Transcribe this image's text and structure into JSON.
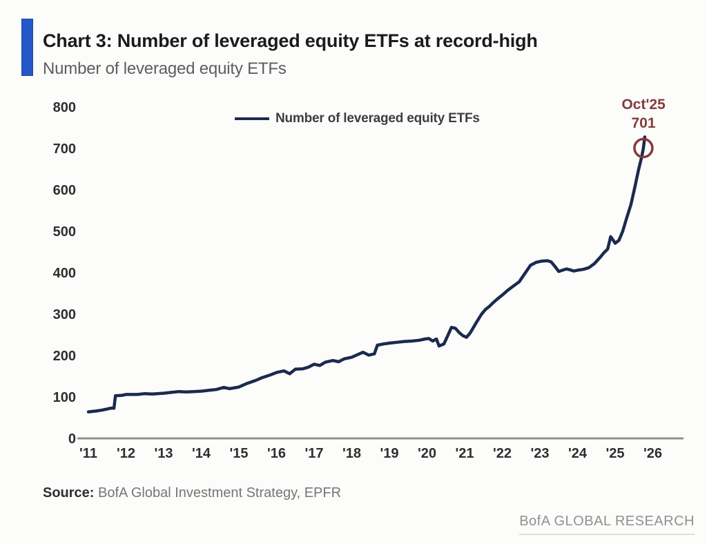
{
  "header": {
    "title": "Chart 3: Number of leveraged equity ETFs at record-high",
    "subtitle": "Number of leveraged equity ETFs"
  },
  "footer": {
    "source_label": "Source:",
    "source_text": " BofA Global Investment Strategy, EPFR",
    "brand": "BofA GLOBAL RESEARCH"
  },
  "colors": {
    "accent_bar": "#2457c9",
    "line": "#1b2a4e",
    "annotation": "#853a3a",
    "axis": "#8f8f8f",
    "tick_label": "#2e2e2e"
  },
  "chart_data": {
    "type": "line",
    "title": "Number of leveraged equity ETFs",
    "xlabel": "",
    "ylabel": "",
    "grid": false,
    "legend_position": "top-center",
    "xlim": [
      2010.75,
      2026.4
    ],
    "ylim": [
      0,
      800
    ],
    "yticks": [
      0,
      100,
      200,
      300,
      400,
      500,
      600,
      700,
      800
    ],
    "xticks": {
      "positions": [
        2011,
        2012,
        2013,
        2014,
        2015,
        2016,
        2017,
        2018,
        2019,
        2020,
        2021,
        2022,
        2023,
        2024,
        2025,
        2026
      ],
      "labels": [
        "'11",
        "'12",
        "'13",
        "'14",
        "'15",
        "'16",
        "'17",
        "'18",
        "'19",
        "'20",
        "'21",
        "'22",
        "'23",
        "'24",
        "'25",
        "'26"
      ]
    },
    "series": [
      {
        "name": "Number of leveraged equity ETFs",
        "color": "#1b2a4e",
        "x": [
          2011.0,
          2011.2,
          2011.35,
          2011.5,
          2011.6,
          2011.68,
          2011.72,
          2011.9,
          2012.0,
          2012.3,
          2012.5,
          2012.7,
          2013.0,
          2013.2,
          2013.4,
          2013.6,
          2013.8,
          2014.0,
          2014.2,
          2014.4,
          2014.6,
          2014.75,
          2015.0,
          2015.2,
          2015.45,
          2015.6,
          2015.8,
          2016.0,
          2016.2,
          2016.35,
          2016.5,
          2016.7,
          2016.85,
          2017.0,
          2017.15,
          2017.3,
          2017.5,
          2017.65,
          2017.8,
          2018.0,
          2018.15,
          2018.3,
          2018.45,
          2018.6,
          2018.68,
          2018.85,
          2019.0,
          2019.2,
          2019.4,
          2019.6,
          2019.8,
          2019.95,
          2020.05,
          2020.15,
          2020.25,
          2020.32,
          2020.45,
          2020.55,
          2020.65,
          2020.75,
          2020.85,
          2020.95,
          2021.05,
          2021.15,
          2021.3,
          2021.45,
          2021.55,
          2021.65,
          2021.75,
          2021.85,
          2022.0,
          2022.15,
          2022.3,
          2022.45,
          2022.6,
          2022.75,
          2022.9,
          2023.05,
          2023.2,
          2023.3,
          2023.4,
          2023.5,
          2023.6,
          2023.7,
          2023.8,
          2023.9,
          2024.0,
          2024.15,
          2024.3,
          2024.45,
          2024.6,
          2024.7,
          2024.8,
          2024.88,
          2024.95,
          2025.0,
          2025.1,
          2025.2,
          2025.3,
          2025.42,
          2025.52,
          2025.62,
          2025.7,
          2025.75
        ],
        "values": [
          64,
          66,
          68,
          71,
          73,
          73,
          103,
          104,
          106,
          106,
          108,
          107,
          109,
          111,
          113,
          112,
          113,
          114,
          116,
          118,
          123,
          120,
          124,
          132,
          140,
          146,
          152,
          159,
          163,
          156,
          167,
          168,
          172,
          179,
          176,
          184,
          188,
          185,
          192,
          196,
          202,
          208,
          201,
          204,
          225,
          228,
          230,
          232,
          234,
          235,
          237,
          240,
          241,
          235,
          240,
          223,
          228,
          248,
          268,
          266,
          256,
          248,
          244,
          255,
          278,
          300,
          311,
          318,
          327,
          335,
          346,
          358,
          368,
          378,
          398,
          418,
          425,
          428,
          429,
          426,
          415,
          403,
          406,
          409,
          407,
          404,
          406,
          408,
          412,
          422,
          437,
          448,
          457,
          487,
          478,
          471,
          478,
          500,
          530,
          565,
          605,
          648,
          678,
          701
        ]
      }
    ],
    "annotation": {
      "label": "Oct'25",
      "value": 701,
      "x": 2025.75,
      "y": 701,
      "color": "#853a3a"
    }
  }
}
